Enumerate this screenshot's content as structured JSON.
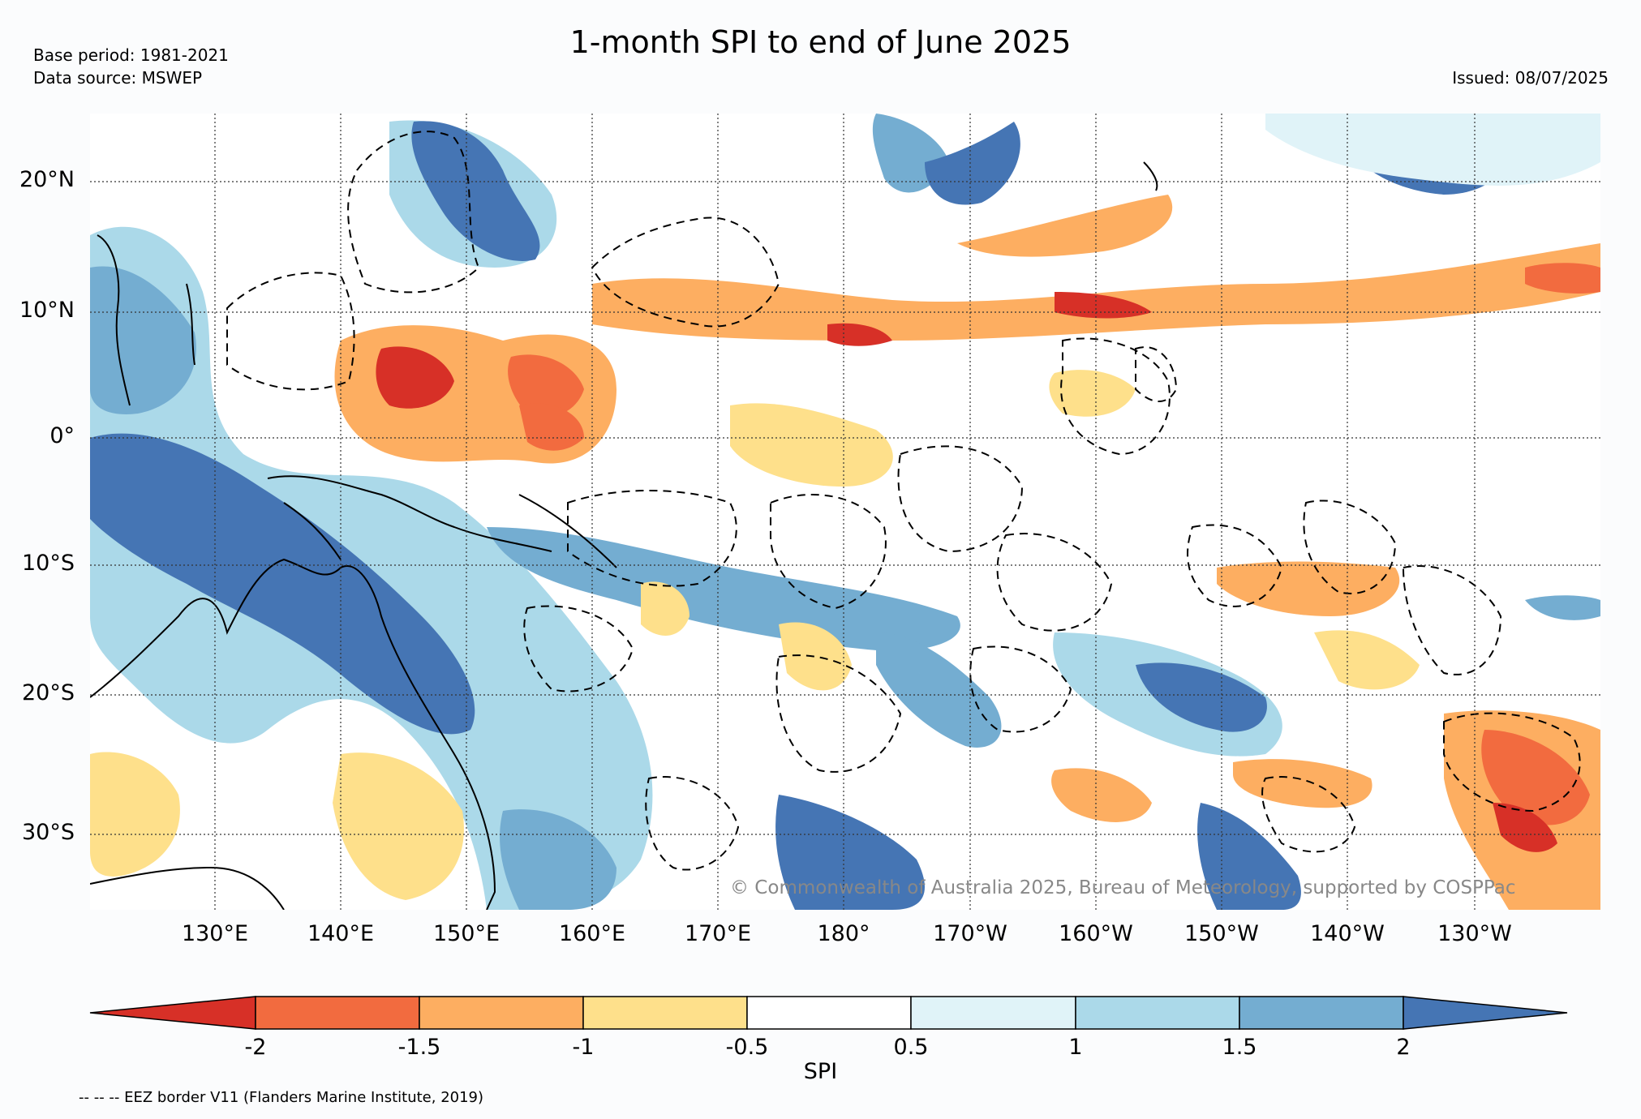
{
  "header": {
    "title": "1-month SPI to end of June 2025",
    "base_period": "Base period: 1981-2021",
    "data_source": "Data source: MSWEP",
    "issued": "Issued: 08/07/2025"
  },
  "map": {
    "lat_labels": [
      "20°N",
      "10°N",
      "0°",
      "10°S",
      "20°S",
      "30°S"
    ],
    "lon_labels": [
      "130°E",
      "140°E",
      "150°E",
      "160°E",
      "170°E",
      "180°",
      "170°W",
      "160°W",
      "150°W",
      "140°W",
      "130°W"
    ],
    "copyright": "© Commonwealth of Australia 2025, Bureau of Meteorology, supported by COSPPac",
    "eez_note": "-- -- -- EEZ border V11 (Flanders Marine Institute, 2019)"
  },
  "colorbar": {
    "label": "SPI",
    "ticks": [
      "-2",
      "-1.5",
      "-1",
      "-0.5",
      "0.5",
      "1",
      "1.5",
      "2"
    ],
    "colors": [
      "#d73027",
      "#f26b3f",
      "#fdae61",
      "#fee08b",
      "#ffffff",
      "#e0f3f8",
      "#abd9e9",
      "#74add1",
      "#4575b4"
    ]
  }
}
